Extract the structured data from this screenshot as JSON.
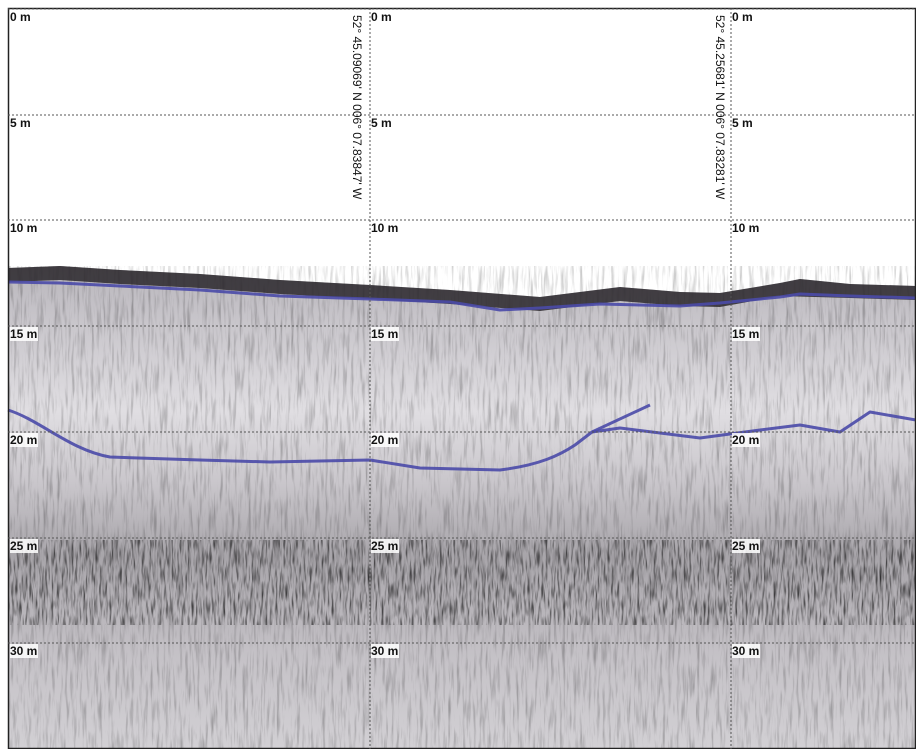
{
  "depth_labels": [
    "0 m",
    "5 m",
    "10 m",
    "15 m",
    "20 m",
    "25 m",
    "30 m"
  ],
  "positions": [
    "52° 45.09069' N 006° 07.83847' W",
    "52° 45.25681' N 006° 07.83281' W"
  ]
}
